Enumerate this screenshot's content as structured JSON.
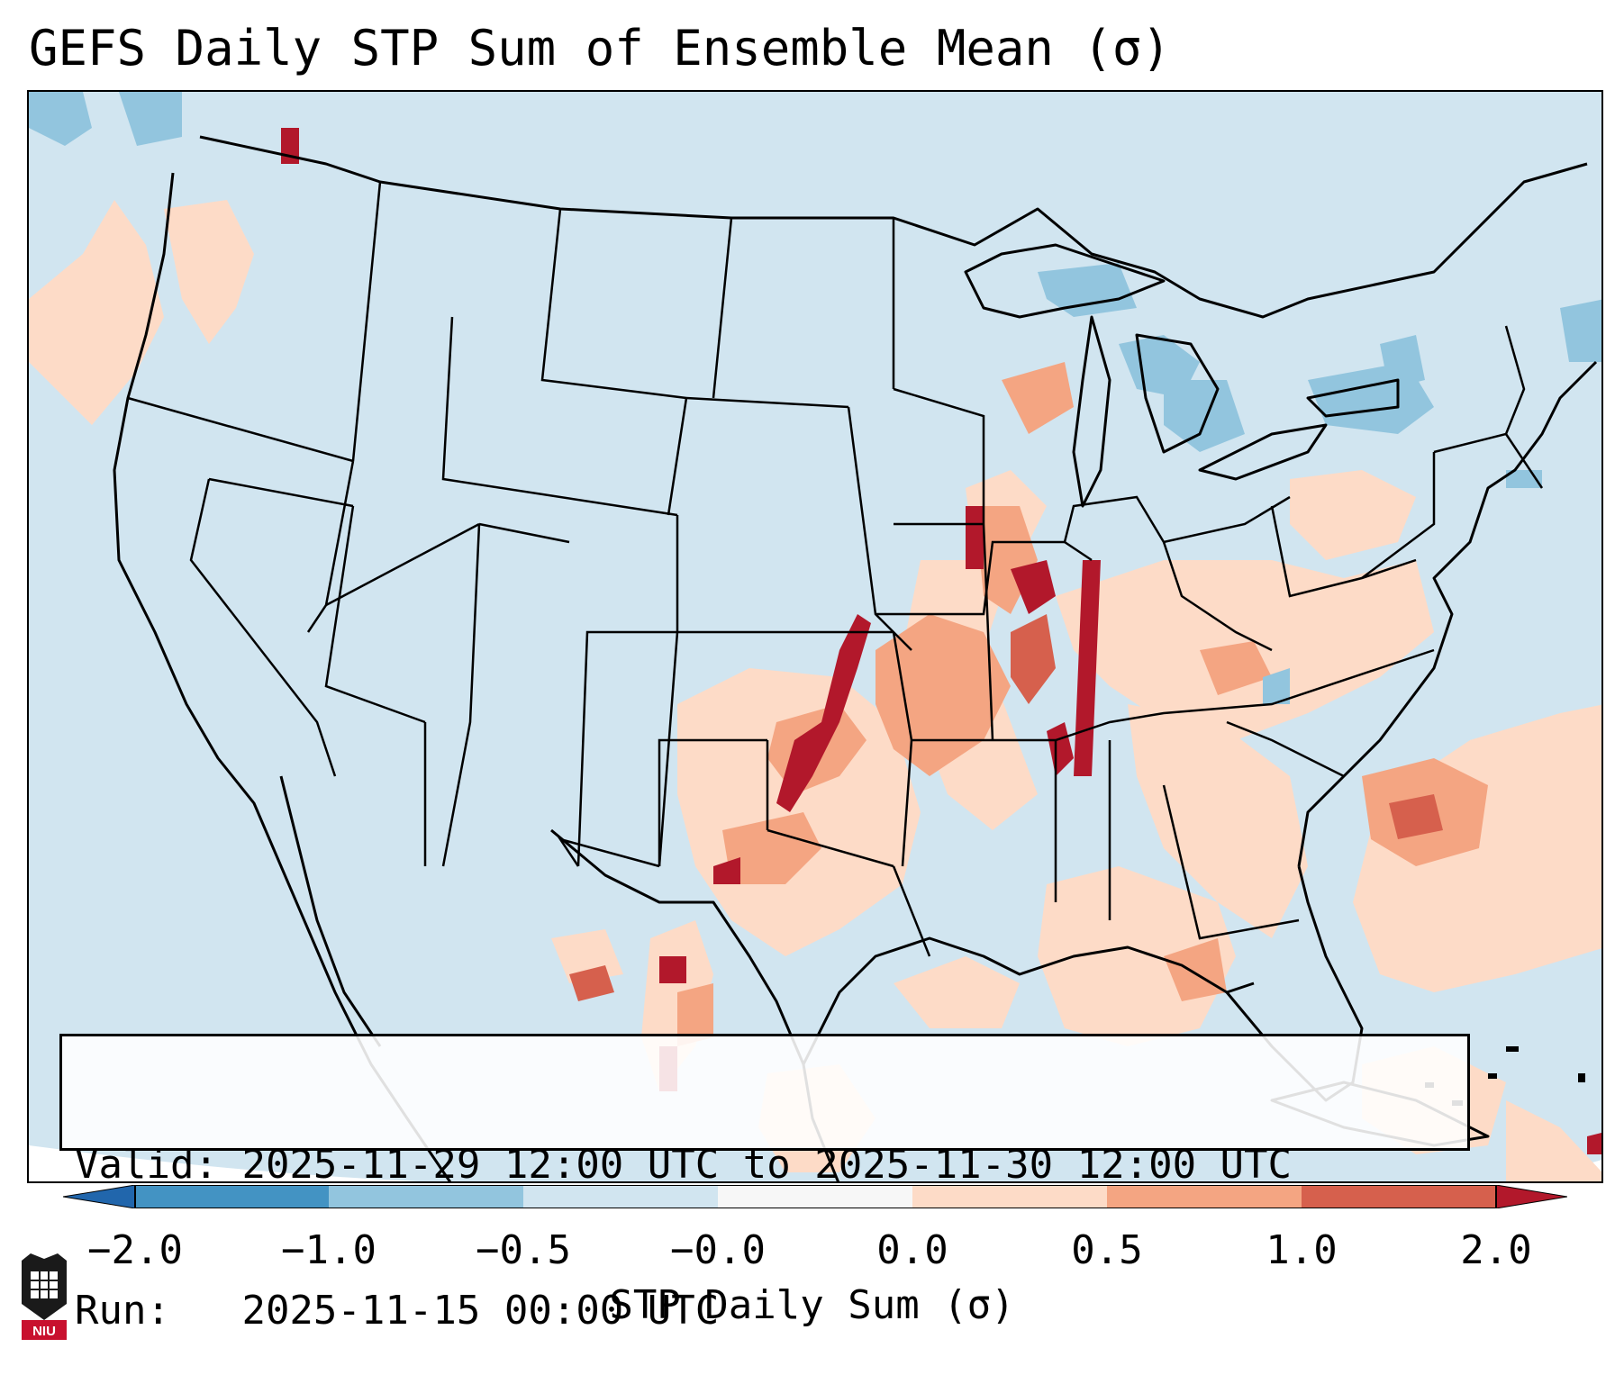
{
  "title": "GEFS Daily STP Sum of Ensemble Mean (σ)",
  "info": {
    "valid_label": "Valid:",
    "valid_value": "2025-11-29 12:00 UTC to 2025-11-30 12:00 UTC",
    "run_label": "Run:",
    "run_value": "2025-11-15 00:00 UTC"
  },
  "colorbar": {
    "label": "STP Daily Sum (σ)",
    "ticks": [
      "−2.0",
      "−1.0",
      "−0.5",
      "−0.0",
      "0.0",
      "0.5",
      "1.0",
      "2.0"
    ],
    "colors": [
      "#2166ac",
      "#4393c3",
      "#92c5de",
      "#d1e5f0",
      "#f7f7f7",
      "#fddbc7",
      "#f4a582",
      "#d6604d",
      "#b2182b"
    ]
  },
  "logo": {
    "text": "NIU",
    "icon": "university-crest-icon"
  }
}
